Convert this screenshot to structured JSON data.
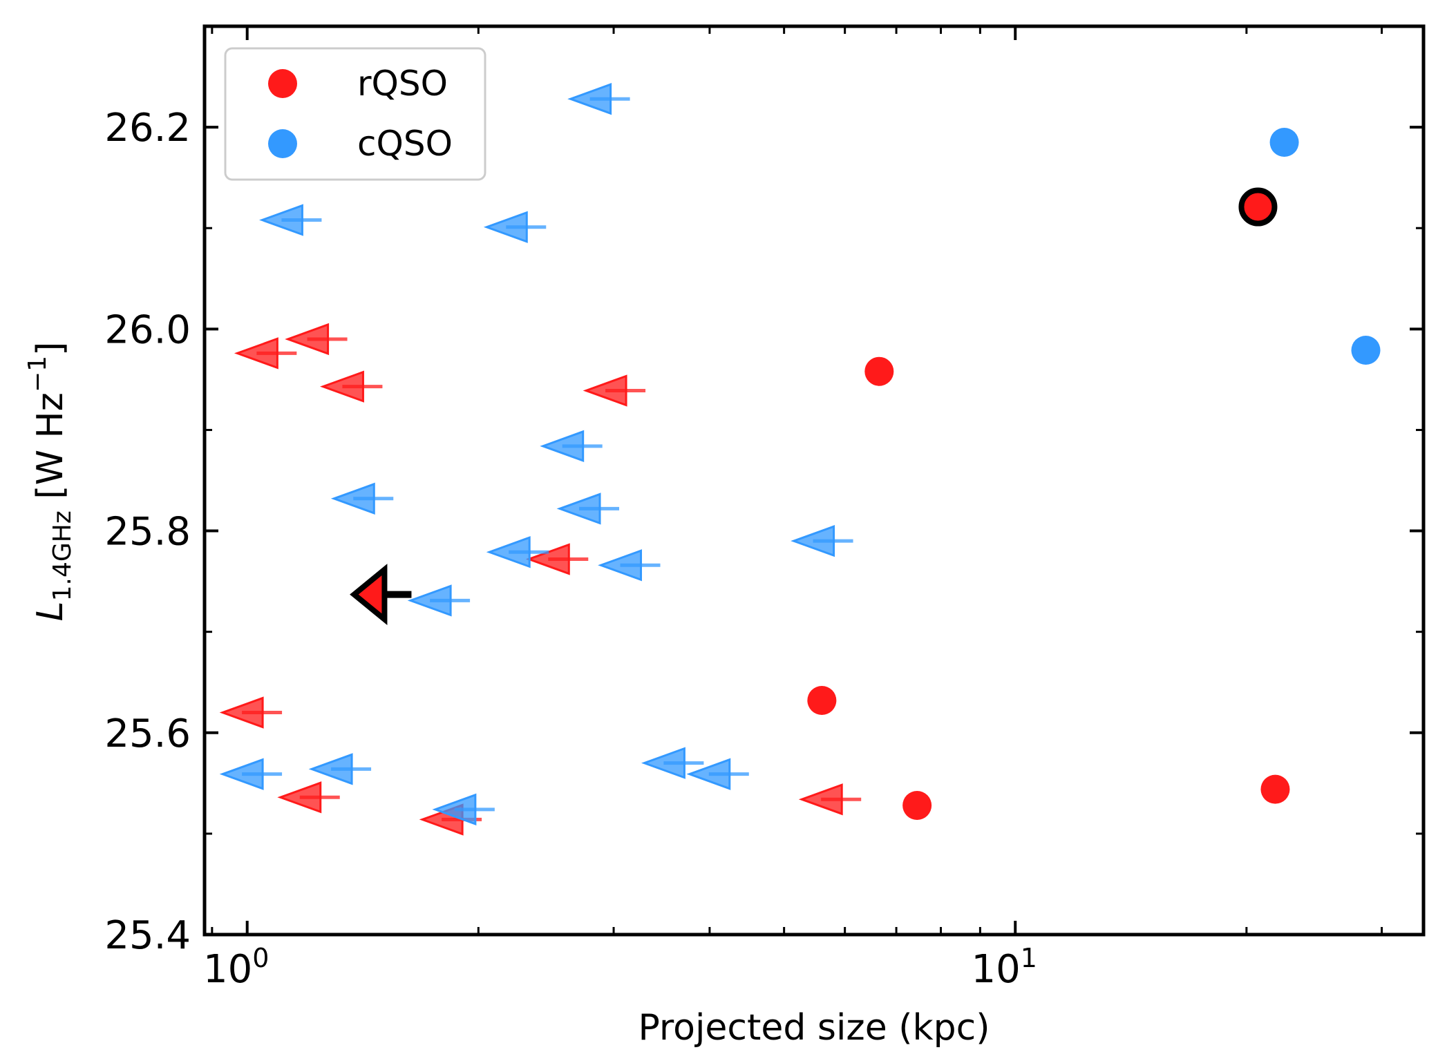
{
  "chart_data": {
    "type": "scatter",
    "xscale": "log",
    "xlim": [
      0.88,
      34.0
    ],
    "ylim": [
      25.4,
      26.3
    ],
    "xlabel": "Projected size (kpc)",
    "ylabel": {
      "symbol": "L",
      "subscript": "1.4GHz",
      "units_prefix": " [W Hz",
      "units_exp": "−1",
      "units_suffix": "]"
    },
    "x_tick_labels": [
      {
        "value": 1,
        "base": "10",
        "exp": "0"
      },
      {
        "value": 10,
        "base": "10",
        "exp": "1"
      }
    ],
    "y_ticks": [
      25.4,
      25.6,
      25.8,
      26.0,
      26.2
    ],
    "y_tick_labels": [
      "25.4",
      "25.6",
      "25.8",
      "26.0",
      "26.2"
    ],
    "colors": {
      "rQSO": "#ff1a1a",
      "cQSO": "#3399ff"
    },
    "legend": {
      "position": "upper-left",
      "entries": [
        {
          "label": "rQSO",
          "color": "#ff1a1a"
        },
        {
          "label": "cQSO",
          "color": "#3399ff"
        }
      ]
    },
    "series": [
      {
        "name": "rQSO detections",
        "kind": "point",
        "color": "#ff1a1a",
        "points": [
          {
            "x": 6.65,
            "y": 25.958
          },
          {
            "x": 5.6,
            "y": 25.632
          },
          {
            "x": 7.45,
            "y": 25.528
          },
          {
            "x": 21.8,
            "y": 25.544
          },
          {
            "x": 20.7,
            "y": 26.121
          }
        ]
      },
      {
        "name": "cQSO detections",
        "kind": "point",
        "color": "#3399ff",
        "points": [
          {
            "x": 22.4,
            "y": 26.185
          },
          {
            "x": 28.6,
            "y": 25.979
          }
        ]
      },
      {
        "name": "rQSO upper limits",
        "kind": "upper-limit",
        "color": "#ff1a1a",
        "points": [
          {
            "x": 1.16,
            "y": 25.976
          },
          {
            "x": 1.35,
            "y": 25.99
          },
          {
            "x": 1.5,
            "y": 25.943
          },
          {
            "x": 3.3,
            "y": 25.939
          },
          {
            "x": 2.78,
            "y": 25.772
          },
          {
            "x": 1.11,
            "y": 25.62
          },
          {
            "x": 1.32,
            "y": 25.536
          },
          {
            "x": 2.02,
            "y": 25.514
          },
          {
            "x": 6.3,
            "y": 25.534
          }
        ]
      },
      {
        "name": "cQSO upper limits",
        "kind": "upper-limit",
        "color": "#3399ff",
        "points": [
          {
            "x": 3.15,
            "y": 26.228
          },
          {
            "x": 1.25,
            "y": 26.108
          },
          {
            "x": 2.45,
            "y": 26.101
          },
          {
            "x": 2.9,
            "y": 25.884
          },
          {
            "x": 1.55,
            "y": 25.832
          },
          {
            "x": 3.05,
            "y": 25.822
          },
          {
            "x": 6.15,
            "y": 25.79
          },
          {
            "x": 2.47,
            "y": 25.779
          },
          {
            "x": 3.45,
            "y": 25.766
          },
          {
            "x": 1.95,
            "y": 25.731
          },
          {
            "x": 1.11,
            "y": 25.559
          },
          {
            "x": 1.45,
            "y": 25.564
          },
          {
            "x": 3.93,
            "y": 25.57
          },
          {
            "x": 4.5,
            "y": 25.559
          },
          {
            "x": 2.1,
            "y": 25.524
          }
        ]
      },
      {
        "name": "highlighted upper limit",
        "kind": "highlight-limit",
        "color": "#ff1a1a",
        "points": [
          {
            "x": 1.5,
            "y": 25.737
          }
        ]
      },
      {
        "name": "highlighted detection",
        "kind": "highlight-point",
        "color": "#ff1a1a",
        "points": [
          {
            "x": 20.7,
            "y": 26.121
          }
        ]
      }
    ]
  }
}
